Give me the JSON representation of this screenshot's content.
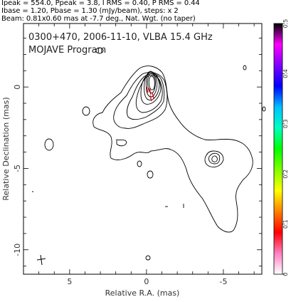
{
  "header": {
    "line1": "Ipeak = 554.0, Ppeak = 3.8, I RMS = 0.40, P RMS = 0.44",
    "line2": "Ibase = 1.20, Pbase = 1.30 (mJy/beam), steps: x 2",
    "line3": "Beam: 0.81x0.60 mas at -7.7 deg., Nat. Wgt. (no taper)"
  },
  "chart_data": {
    "type": "contour",
    "title": "0300+470, 2006-11-10, VLBA 15.4 GHz",
    "subtitle": "MOJAVE Program",
    "xlabel": "Relative R.A. (mas)",
    "ylabel": "Relative Declination (mas)",
    "xlim": [
      8,
      -7.5
    ],
    "ylim": [
      -11.5,
      3.9
    ],
    "x_ticks": [
      5,
      0,
      -5
    ],
    "x_tick_labels": [
      "5",
      "0",
      "-5"
    ],
    "y_ticks": [
      0,
      -5,
      -10
    ],
    "y_tick_labels": [
      "0",
      "-5",
      "-10"
    ],
    "colorbar": {
      "range": [
        0,
        0.5
      ],
      "ticks": [
        0,
        0.1,
        0.2,
        0.3,
        0.4,
        0.5
      ],
      "tick_labels": [
        "0",
        "0.1",
        "0.2",
        "0.3",
        "0.4",
        "0.5"
      ],
      "colors": [
        "#ffffff",
        "#ff80c0",
        "#ff0000",
        "#ff8000",
        "#ffff00",
        "#80ff00",
        "#00ff00",
        "#00ffc0",
        "#00c0ff",
        "#0000ff",
        "#8000ff",
        "#ff00ff",
        "#000000"
      ]
    },
    "contour_color": "#000000",
    "polarization_color": "#e00000",
    "core_position": [
      0,
      0
    ],
    "beam": {
      "major": 0.81,
      "minor": 0.6,
      "pa": -7.7
    }
  }
}
